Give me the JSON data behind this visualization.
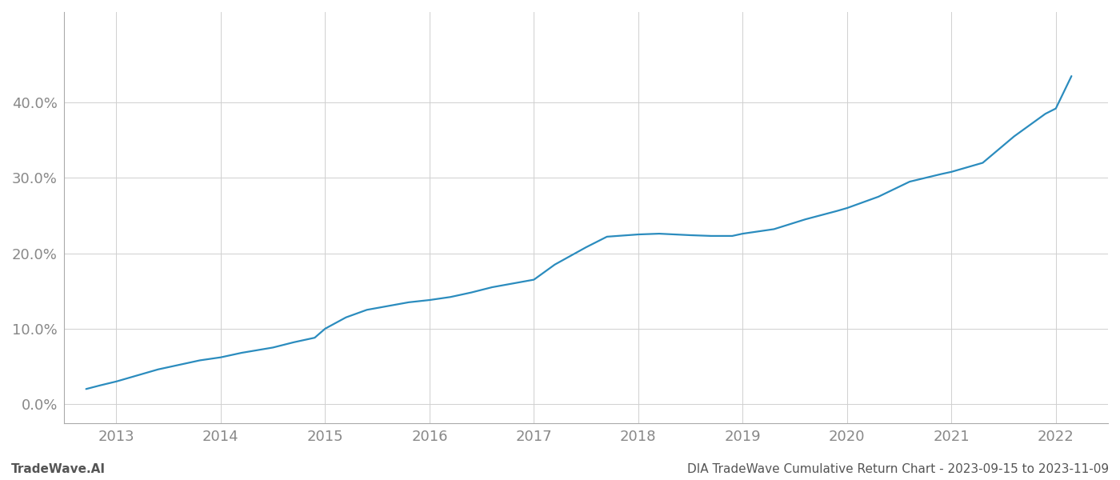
{
  "title": "",
  "footer_left": "TradeWave.AI",
  "footer_right": "DIA TradeWave Cumulative Return Chart - 2023-09-15 to 2023-11-09",
  "line_color": "#2b8cbe",
  "background_color": "#ffffff",
  "grid_color": "#d0d0d0",
  "x_years": [
    2013,
    2014,
    2015,
    2016,
    2017,
    2018,
    2019,
    2020,
    2021,
    2022
  ],
  "x_data": [
    2012.71,
    2012.85,
    2013.0,
    2013.2,
    2013.4,
    2013.6,
    2013.8,
    2014.0,
    2014.2,
    2014.5,
    2014.7,
    2014.9,
    2015.0,
    2015.2,
    2015.4,
    2015.6,
    2015.8,
    2016.0,
    2016.2,
    2016.4,
    2016.6,
    2016.8,
    2017.0,
    2017.2,
    2017.5,
    2017.7,
    2018.0,
    2018.2,
    2018.5,
    2018.7,
    2018.9,
    2019.0,
    2019.3,
    2019.6,
    2019.9,
    2020.0,
    2020.3,
    2020.6,
    2020.9,
    2021.0,
    2021.3,
    2021.6,
    2021.9,
    2022.0,
    2022.15
  ],
  "y_data": [
    0.02,
    0.025,
    0.03,
    0.038,
    0.046,
    0.052,
    0.058,
    0.062,
    0.068,
    0.075,
    0.082,
    0.088,
    0.1,
    0.115,
    0.125,
    0.13,
    0.135,
    0.138,
    0.142,
    0.148,
    0.155,
    0.16,
    0.165,
    0.185,
    0.208,
    0.222,
    0.225,
    0.226,
    0.224,
    0.223,
    0.223,
    0.226,
    0.232,
    0.245,
    0.256,
    0.26,
    0.275,
    0.295,
    0.305,
    0.308,
    0.32,
    0.355,
    0.385,
    0.392,
    0.435
  ],
  "ylim": [
    -0.025,
    0.52
  ],
  "yticks": [
    0.0,
    0.1,
    0.2,
    0.3,
    0.4
  ],
  "ytick_labels": [
    "0.0%",
    "10.0%",
    "20.0%",
    "30.0%",
    "40.0%"
  ],
  "xlim": [
    2012.5,
    2022.5
  ],
  "line_width": 1.6,
  "tick_label_color": "#888888",
  "tick_fontsize": 13,
  "footer_fontsize": 11,
  "footer_color": "#555555",
  "spine_color": "#aaaaaa"
}
